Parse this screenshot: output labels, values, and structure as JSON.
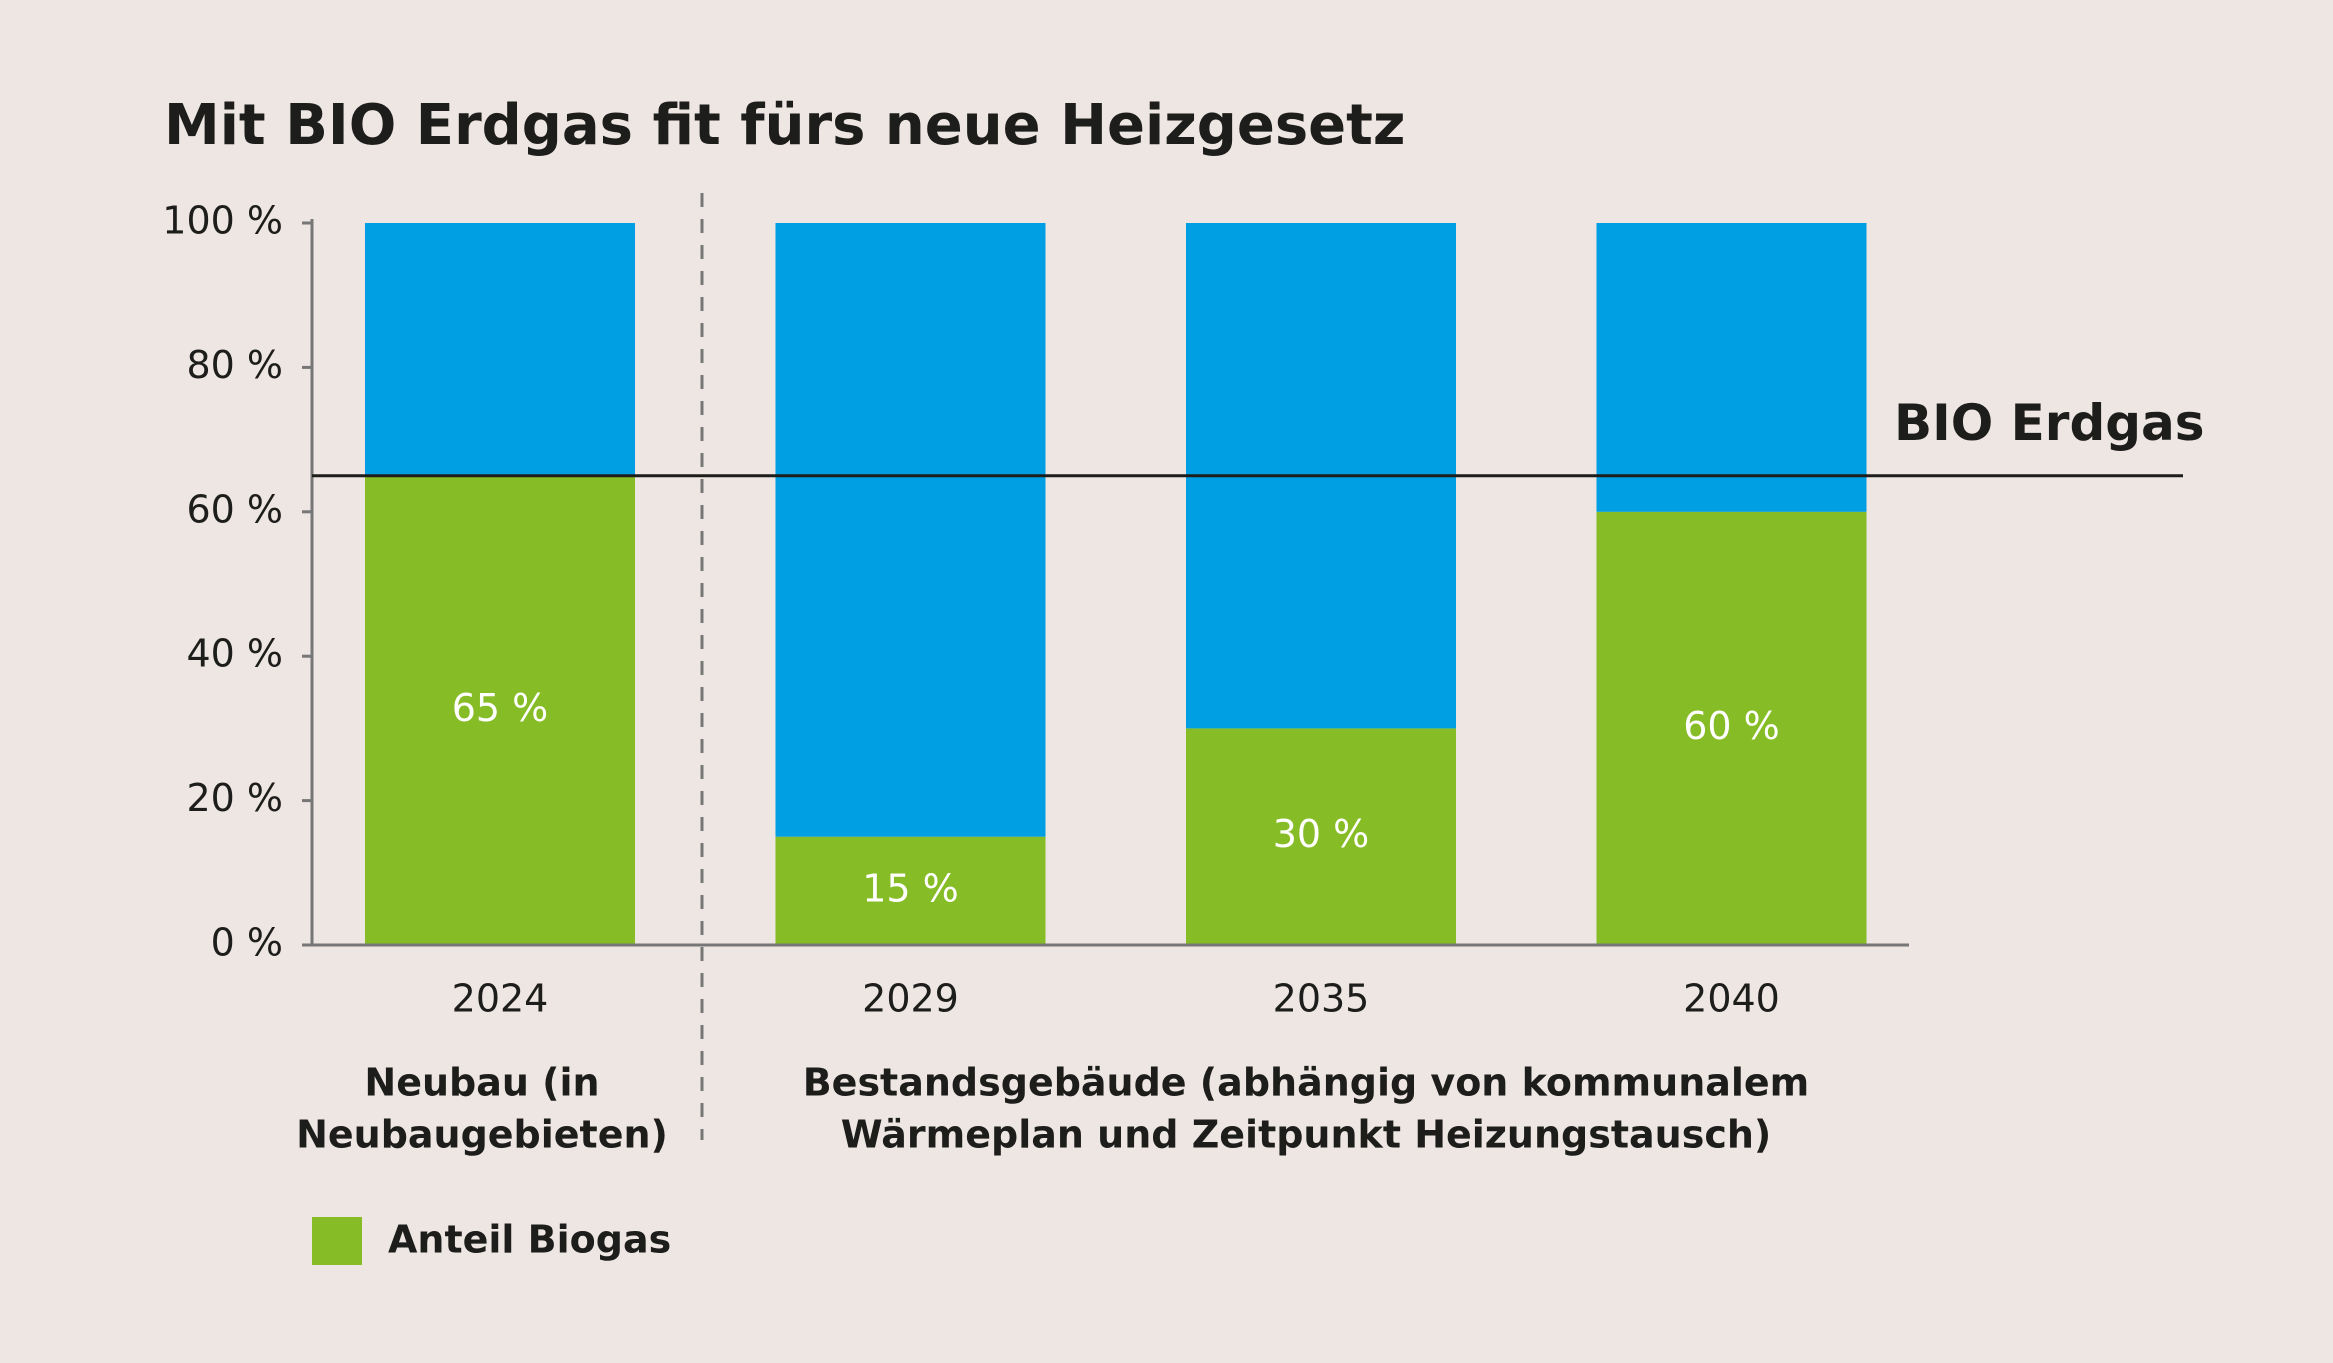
{
  "chart_data": {
    "type": "stacked-bar",
    "title": "Mit BIO Erdgas fit fürs neue Heizgesetz",
    "categories": [
      "2024",
      "2029",
      "2035",
      "2040"
    ],
    "series": [
      {
        "name": "Anteil Biogas",
        "color": "#86bc25",
        "values": [
          65,
          15,
          30,
          60
        ],
        "value_labels": [
          "65 %",
          "15 %",
          "30 %",
          "60 %"
        ]
      },
      {
        "color": "#009fe3",
        "values": [
          35,
          85,
          70,
          40
        ]
      }
    ],
    "ylim": [
      0,
      100
    ],
    "yticks": [
      {
        "value": 0,
        "label": "0 %"
      },
      {
        "value": 20,
        "label": "20 %"
      },
      {
        "value": 40,
        "label": "40 %"
      },
      {
        "value": 60,
        "label": "60 %"
      },
      {
        "value": 80,
        "label": "80 %"
      },
      {
        "value": 100,
        "label": "100 %"
      }
    ],
    "reference_line": {
      "value": 65,
      "label": "BIO Erdgas"
    },
    "groups": [
      {
        "lines": [
          "Neubau (in",
          "Neubaugebieten)"
        ]
      },
      {
        "lines": [
          "Bestandsgebäude (abhängig von kommunalem",
          "Wärmeplan und Zeitpunkt Heizungstausch)"
        ]
      }
    ],
    "legend": "bottom-left"
  }
}
